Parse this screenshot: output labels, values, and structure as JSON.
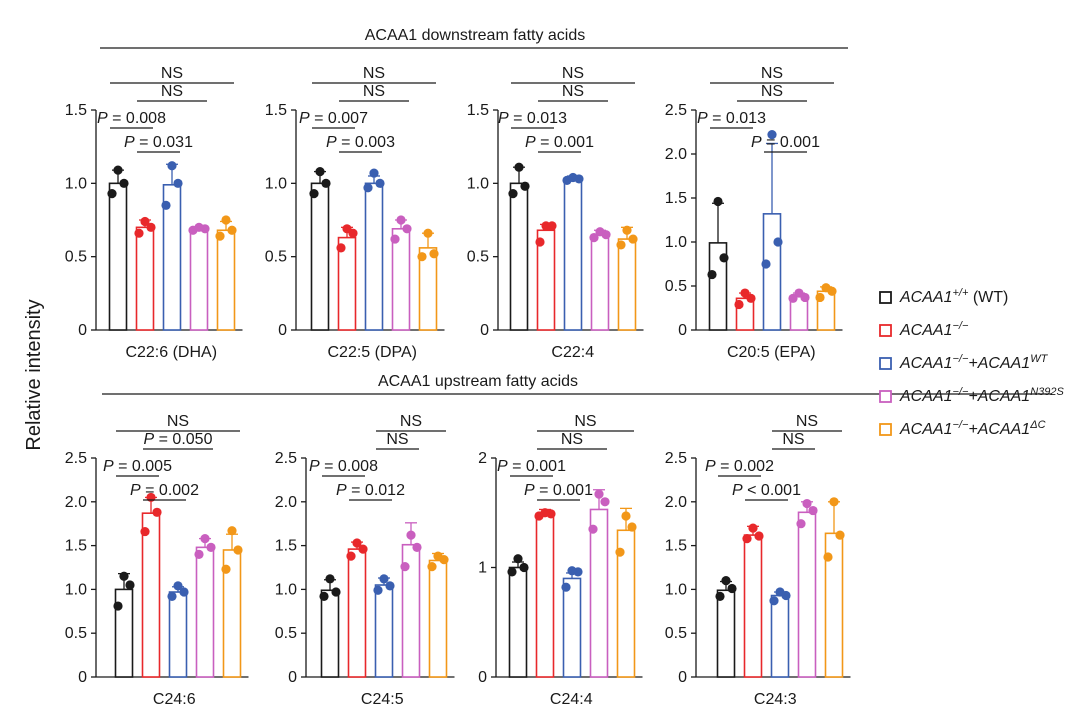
{
  "y_axis_label": "Relative intensity",
  "colors": {
    "WT": "#1a1a1a",
    "KO": "#e8282b",
    "KO_WT": "#3a5fb0",
    "KO_N392S": "#c95fbf",
    "KO_dC": "#f29718"
  },
  "legend": [
    {
      "key": "WT",
      "gene": "ACAA1",
      "sup": "+/+",
      "suffix": " (WT)"
    },
    {
      "key": "KO",
      "gene": "ACAA1",
      "sup": "−/−",
      "suffix": ""
    },
    {
      "key": "KO_WT",
      "gene": "ACAA1",
      "sup": "−/−",
      "suffix": "+ACAA1",
      "sup2": "WT"
    },
    {
      "key": "KO_N392S",
      "gene": "ACAA1",
      "sup": "−/−",
      "suffix": "+ACAA1",
      "sup2": "N392S"
    },
    {
      "key": "KO_dC",
      "gene": "ACAA1",
      "sup": "−/−",
      "suffix": "+ACAA1",
      "sup2": "ΔC"
    }
  ],
  "sections": [
    {
      "title": "ACAA1 downstream fatty acids"
    },
    {
      "title": "ACAA1 upstream fatty acids"
    }
  ],
  "chart_data": [
    {
      "type": "bar",
      "section": 0,
      "title": "C22:6 (DHA)",
      "ylim": [
        0,
        1.5
      ],
      "yticks": [
        0,
        0.5,
        1.0,
        1.5
      ],
      "ytick_labels": [
        "0",
        "0.5",
        "1.0",
        "1.5"
      ],
      "groups": [
        "WT",
        "KO",
        "KO_WT",
        "KO_N392S",
        "KO_dC"
      ],
      "values": [
        1.0,
        0.7,
        0.99,
        0.68,
        0.68
      ],
      "errors": [
        0.09,
        0.05,
        0.14,
        0.02,
        0.06
      ],
      "points": [
        [
          0.93,
          1.0,
          1.09
        ],
        [
          0.66,
          0.7,
          0.74
        ],
        [
          0.85,
          1.0,
          1.12
        ],
        [
          0.68,
          0.69,
          0.7
        ],
        [
          0.64,
          0.68,
          0.75
        ]
      ],
      "brackets": [
        {
          "from": 0,
          "to": 4,
          "label": "NS",
          "level": 3
        },
        {
          "from": 1,
          "to": 3,
          "label": "NS",
          "level": 2
        },
        {
          "from": 0,
          "to": 1,
          "label": "P = 0.008",
          "level": 1
        },
        {
          "from": 1,
          "to": 2,
          "label": "P = 0.031",
          "level": 0
        }
      ]
    },
    {
      "type": "bar",
      "section": 0,
      "title": "C22:5 (DPA)",
      "ylim": [
        0,
        1.5
      ],
      "yticks": [
        0,
        0.5,
        1.0,
        1.5
      ],
      "ytick_labels": [
        "0",
        "0.5",
        "1.0",
        "1.5"
      ],
      "groups": [
        "WT",
        "KO",
        "KO_WT",
        "KO_N392S",
        "KO_dC"
      ],
      "values": [
        1.0,
        0.63,
        1.0,
        0.69,
        0.56
      ],
      "errors": [
        0.08,
        0.07,
        0.05,
        0.06,
        0.1
      ],
      "points": [
        [
          0.93,
          1.0,
          1.08
        ],
        [
          0.56,
          0.66,
          0.69
        ],
        [
          0.97,
          1.0,
          1.07
        ],
        [
          0.62,
          0.69,
          0.75
        ],
        [
          0.5,
          0.52,
          0.66
        ]
      ],
      "brackets": [
        {
          "from": 0,
          "to": 4,
          "label": "NS",
          "level": 3
        },
        {
          "from": 1,
          "to": 3,
          "label": "NS",
          "level": 2
        },
        {
          "from": 0,
          "to": 1,
          "label": "P = 0.007",
          "level": 1
        },
        {
          "from": 1,
          "to": 2,
          "label": "P = 0.003",
          "level": 0
        }
      ]
    },
    {
      "type": "bar",
      "section": 0,
      "title": "C22:4",
      "ylim": [
        0,
        1.5
      ],
      "yticks": [
        0,
        0.5,
        1.0,
        1.5
      ],
      "ytick_labels": [
        "0",
        "0.5",
        "1.0",
        "1.5"
      ],
      "groups": [
        "WT",
        "KO",
        "KO_WT",
        "KO_N392S",
        "KO_dC"
      ],
      "values": [
        1.0,
        0.68,
        1.03,
        0.65,
        0.62
      ],
      "errors": [
        0.11,
        0.04,
        0.02,
        0.03,
        0.08
      ],
      "points": [
        [
          0.93,
          0.98,
          1.11
        ],
        [
          0.6,
          0.71,
          0.71
        ],
        [
          1.02,
          1.03,
          1.04
        ],
        [
          0.63,
          0.65,
          0.67
        ],
        [
          0.58,
          0.62,
          0.68
        ]
      ],
      "brackets": [
        {
          "from": 0,
          "to": 4,
          "label": "NS",
          "level": 3
        },
        {
          "from": 1,
          "to": 3,
          "label": "NS",
          "level": 2
        },
        {
          "from": 0,
          "to": 1,
          "label": "P = 0.013",
          "level": 1
        },
        {
          "from": 1,
          "to": 2,
          "label": "P = 0.001",
          "level": 0
        }
      ]
    },
    {
      "type": "bar",
      "section": 0,
      "title": "C20:5 (EPA)",
      "ylim": [
        0,
        2.5
      ],
      "yticks": [
        0,
        0.5,
        1.0,
        1.5,
        2.0,
        2.5
      ],
      "ytick_labels": [
        "0",
        "0.5",
        "1.0",
        "1.5",
        "2.0",
        "2.5"
      ],
      "groups": [
        "WT",
        "KO",
        "KO_WT",
        "KO_N392S",
        "KO_dC"
      ],
      "values": [
        0.99,
        0.36,
        1.32,
        0.38,
        0.44
      ],
      "errors": [
        0.45,
        0.06,
        0.8,
        0.04,
        0.05
      ],
      "points": [
        [
          0.63,
          0.82,
          1.46
        ],
        [
          0.29,
          0.36,
          0.42
        ],
        [
          0.75,
          1.0,
          2.22
        ],
        [
          0.36,
          0.37,
          0.42
        ],
        [
          0.37,
          0.44,
          0.48
        ]
      ],
      "brackets": [
        {
          "from": 0,
          "to": 4,
          "label": "NS",
          "level": 3
        },
        {
          "from": 1,
          "to": 3,
          "label": "NS",
          "level": 2
        },
        {
          "from": 0,
          "to": 1,
          "label": "P = 0.013",
          "level": 1
        },
        {
          "from": 2,
          "to": 3,
          "label": "P = 0.001",
          "level": 0
        }
      ]
    },
    {
      "type": "bar",
      "section": 1,
      "title": "C24:6",
      "ylim": [
        0,
        2.5
      ],
      "yticks": [
        0,
        0.5,
        1.0,
        1.5,
        2.0,
        2.5
      ],
      "ytick_labels": [
        "0",
        "0.5",
        "1.0",
        "1.5",
        "2.0",
        "2.5"
      ],
      "groups": [
        "WT",
        "KO",
        "KO_WT",
        "KO_N392S",
        "KO_dC"
      ],
      "values": [
        1.0,
        1.87,
        0.97,
        1.48,
        1.45
      ],
      "errors": [
        0.18,
        0.18,
        0.06,
        0.1,
        0.18
      ],
      "points": [
        [
          0.81,
          1.05,
          1.15
        ],
        [
          1.66,
          1.88,
          2.05
        ],
        [
          0.92,
          0.97,
          1.04
        ],
        [
          1.4,
          1.48,
          1.58
        ],
        [
          1.23,
          1.45,
          1.67
        ]
      ],
      "brackets": [
        {
          "from": 0,
          "to": 4,
          "label": "NS",
          "level": 3
        },
        {
          "from": 1,
          "to": 3,
          "label": "P = 0.050",
          "level": 2
        },
        {
          "from": 0,
          "to": 1,
          "label": "P = 0.005",
          "level": 1
        },
        {
          "from": 1,
          "to": 2,
          "label": "P = 0.002",
          "level": 0
        }
      ]
    },
    {
      "type": "bar",
      "section": 1,
      "title": "C24:5",
      "ylim": [
        0,
        2.5
      ],
      "yticks": [
        0,
        0.5,
        1.0,
        1.5,
        2.0,
        2.5
      ],
      "ytick_labels": [
        "0",
        "0.5",
        "1.0",
        "1.5",
        "2.0",
        "2.5"
      ],
      "groups": [
        "WT",
        "KO",
        "KO_WT",
        "KO_N392S",
        "KO_dC"
      ],
      "values": [
        0.99,
        1.46,
        1.05,
        1.51,
        1.33
      ],
      "errors": [
        0.12,
        0.08,
        0.08,
        0.25,
        0.08
      ],
      "points": [
        [
          0.92,
          0.97,
          1.12
        ],
        [
          1.38,
          1.46,
          1.53
        ],
        [
          0.99,
          1.04,
          1.12
        ],
        [
          1.26,
          1.48,
          1.62
        ],
        [
          1.26,
          1.34,
          1.38
        ]
      ],
      "brackets": [
        {
          "from": 2,
          "to": 4,
          "label": "NS",
          "level": 3
        },
        {
          "from": 2,
          "to": 3,
          "label": "NS",
          "level": 2
        },
        {
          "from": 0,
          "to": 1,
          "label": "P = 0.008",
          "level": 1
        },
        {
          "from": 1,
          "to": 2,
          "label": "P = 0.012",
          "level": 0
        }
      ]
    },
    {
      "type": "bar",
      "section": 1,
      "title": "C24:4",
      "ylim": [
        0,
        2
      ],
      "yticks": [
        0,
        1,
        2
      ],
      "ytick_labels": [
        "0",
        "1",
        "2"
      ],
      "groups": [
        "WT",
        "KO",
        "KO_WT",
        "KO_N392S",
        "KO_dC"
      ],
      "values": [
        1.0,
        1.49,
        0.9,
        1.53,
        1.34
      ],
      "errors": [
        0.05,
        0.04,
        0.05,
        0.18,
        0.2
      ],
      "points": [
        [
          0.96,
          1.0,
          1.08
        ],
        [
          1.47,
          1.49,
          1.5
        ],
        [
          0.82,
          0.96,
          0.97
        ],
        [
          1.35,
          1.6,
          1.67
        ],
        [
          1.14,
          1.37,
          1.47
        ]
      ],
      "brackets": [
        {
          "from": 1,
          "to": 4,
          "label": "NS",
          "level": 3
        },
        {
          "from": 1,
          "to": 3,
          "label": "NS",
          "level": 2
        },
        {
          "from": 0,
          "to": 1,
          "label": "P = 0.001",
          "level": 1
        },
        {
          "from": 1,
          "to": 2,
          "label": "P = 0.001",
          "level": 0
        }
      ]
    },
    {
      "type": "bar",
      "section": 1,
      "title": "C24:3",
      "ylim": [
        0,
        2.5
      ],
      "yticks": [
        0,
        0.5,
        1.0,
        1.5,
        2.0,
        2.5
      ],
      "ytick_labels": [
        "0",
        "0.5",
        "1.0",
        "1.5",
        "2.0",
        "2.5"
      ],
      "groups": [
        "WT",
        "KO",
        "KO_WT",
        "KO_N392S",
        "KO_dC"
      ],
      "values": [
        0.99,
        1.62,
        0.93,
        1.88,
        1.64
      ],
      "errors": [
        0.1,
        0.1,
        0.04,
        0.12,
        0.36
      ],
      "points": [
        [
          0.92,
          1.01,
          1.1
        ],
        [
          1.58,
          1.61,
          1.7
        ],
        [
          0.87,
          0.93,
          0.97
        ],
        [
          1.75,
          1.9,
          1.98
        ],
        [
          1.37,
          1.62,
          2.0
        ]
      ],
      "brackets": [
        {
          "from": 2,
          "to": 4,
          "label": "NS",
          "level": 3
        },
        {
          "from": 2,
          "to": 3,
          "label": "NS",
          "level": 2
        },
        {
          "from": 0,
          "to": 1,
          "label": "P = 0.002",
          "level": 1
        },
        {
          "from": 1,
          "to": 2,
          "label": "P < 0.001",
          "level": 0
        }
      ]
    }
  ]
}
